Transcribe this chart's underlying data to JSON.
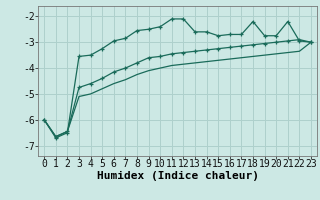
{
  "xlabel": "Humidex (Indice chaleur)",
  "bg_color": "#cce8e4",
  "grid_color": "#aed0cc",
  "line_color": "#1a6b5a",
  "xlim": [
    -0.5,
    23.5
  ],
  "ylim": [
    -7.4,
    -1.6
  ],
  "yticks": [
    -7,
    -6,
    -5,
    -4,
    -3,
    -2
  ],
  "xticks": [
    0,
    1,
    2,
    3,
    4,
    5,
    6,
    7,
    8,
    9,
    10,
    11,
    12,
    13,
    14,
    15,
    16,
    17,
    18,
    19,
    20,
    21,
    22,
    23
  ],
  "line1_y": [
    -6.0,
    -6.7,
    -6.5,
    -3.55,
    -3.5,
    -3.25,
    -2.95,
    -2.85,
    -2.55,
    -2.5,
    -2.4,
    -2.1,
    -2.1,
    -2.6,
    -2.6,
    -2.75,
    -2.7,
    -2.7,
    -2.2,
    -2.75,
    -2.75,
    -2.2,
    -2.95,
    -3.0
  ],
  "line2_y": [
    -6.0,
    -6.65,
    -6.45,
    -4.75,
    -4.6,
    -4.4,
    -4.15,
    -4.0,
    -3.8,
    -3.6,
    -3.55,
    -3.45,
    -3.4,
    -3.35,
    -3.3,
    -3.25,
    -3.2,
    -3.15,
    -3.1,
    -3.05,
    -3.0,
    -2.95,
    -2.9,
    -3.0
  ],
  "line3_y": [
    -6.0,
    -6.65,
    -6.45,
    -5.1,
    -5.0,
    -4.8,
    -4.6,
    -4.45,
    -4.25,
    -4.1,
    -4.0,
    -3.9,
    -3.85,
    -3.8,
    -3.75,
    -3.7,
    -3.65,
    -3.6,
    -3.55,
    -3.5,
    -3.45,
    -3.4,
    -3.35,
    -3.0
  ],
  "xlabel_fontsize": 8,
  "tick_fontsize": 7
}
